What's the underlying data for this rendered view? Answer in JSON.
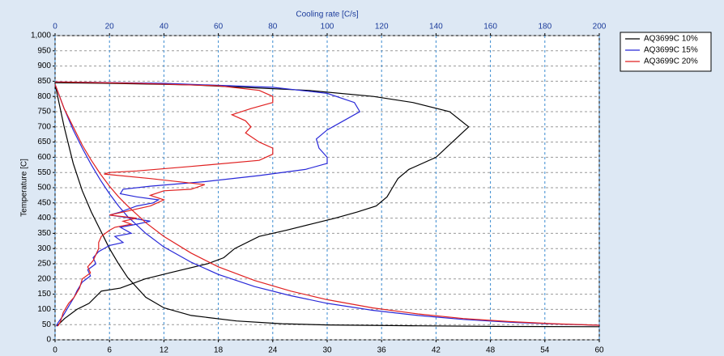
{
  "chart_data": {
    "type": "line",
    "x2_label": "Cooling rate [C/s]",
    "y_label": "Temperature [C]",
    "xlim": [
      0,
      60
    ],
    "xticks": [
      0,
      6,
      12,
      18,
      24,
      30,
      36,
      42,
      48,
      54,
      60
    ],
    "x2lim": [
      0,
      200
    ],
    "x2ticks": [
      0,
      20,
      40,
      60,
      80,
      100,
      120,
      140,
      160,
      180,
      200
    ],
    "ylim": [
      0,
      1000
    ],
    "yticks": [
      0,
      50,
      100,
      150,
      200,
      250,
      300,
      350,
      400,
      450,
      500,
      550,
      600,
      650,
      700,
      750,
      800,
      850,
      900,
      950,
      {
        "value": 1000,
        "label": "1,000"
      }
    ],
    "grid": true,
    "legend": "outside-right",
    "series": [
      {
        "name": "AQ3699C 10%",
        "color": "#000000",
        "cooling": {
          "x": [
            0,
            1,
            2,
            3,
            4,
            5,
            6,
            7,
            8,
            10,
            12,
            15,
            20,
            25,
            30,
            40,
            50,
            60
          ],
          "values": [
            840,
            700,
            580,
            490,
            420,
            360,
            300,
            250,
            205,
            140,
            105,
            80,
            62,
            53,
            49,
            46,
            44,
            43
          ]
        },
        "rate": {
          "x": [
            0,
            20,
            50,
            69,
            93,
            117,
            131.5,
            145,
            152,
            146,
            140,
            130,
            126,
            124,
            122,
            118,
            111,
            103,
            94,
            85,
            75,
            66,
            62,
            56,
            42,
            33,
            24,
            17,
            12.5,
            8,
            3.5,
            1.2,
            0.6
          ],
          "values": [
            845,
            843,
            838,
            830,
            820,
            800,
            780,
            750,
            700,
            650,
            600,
            560,
            530,
            500,
            470,
            440,
            420,
            400,
            380,
            360,
            340,
            300,
            270,
            250,
            220,
            200,
            170,
            160,
            120,
            100,
            70,
            50,
            45
          ]
        }
      },
      {
        "name": "AQ3699C 15%",
        "color": "#2828d8",
        "cooling": {
          "x": [
            0,
            1,
            2,
            3,
            4,
            5,
            6,
            7,
            8,
            10,
            12,
            15,
            18,
            22,
            26,
            30,
            35,
            40,
            45,
            50,
            55,
            60
          ],
          "values": [
            840,
            760,
            690,
            630,
            575,
            525,
            480,
            440,
            405,
            350,
            305,
            255,
            215,
            175,
            145,
            120,
            97,
            80,
            67,
            58,
            52,
            48
          ]
        },
        "rate": {
          "x": [
            0,
            40,
            80,
            100,
            110,
            112,
            106,
            100,
            96,
            97,
            100,
            100,
            92,
            75,
            55,
            35,
            25,
            24,
            30,
            38,
            36,
            30,
            24,
            20,
            28,
            35,
            30,
            24,
            28,
            22,
            25,
            20,
            16,
            14,
            15,
            12,
            13,
            10,
            8,
            7,
            5,
            3,
            1,
            0.5
          ],
          "values": [
            848,
            843,
            830,
            810,
            780,
            750,
            720,
            690,
            660,
            630,
            600,
            580,
            560,
            540,
            520,
            505,
            495,
            480,
            470,
            460,
            450,
            440,
            420,
            410,
            400,
            390,
            380,
            370,
            350,
            340,
            320,
            310,
            290,
            270,
            250,
            230,
            210,
            190,
            160,
            140,
            110,
            80,
            55,
            45
          ]
        }
      },
      {
        "name": "AQ3699C 20%",
        "color": "#e02020",
        "cooling": {
          "x": [
            0,
            1,
            2,
            3,
            4,
            5,
            6,
            7,
            8,
            10,
            12,
            15,
            18,
            22,
            26,
            30,
            35,
            40,
            45,
            50,
            55,
            60
          ],
          "values": [
            840,
            760,
            700,
            640,
            590,
            545,
            505,
            470,
            440,
            385,
            340,
            285,
            240,
            195,
            160,
            132,
            105,
            85,
            70,
            60,
            53,
            48
          ]
        },
        "rate": {
          "x": [
            0,
            30,
            60,
            75,
            80,
            80,
            72,
            65,
            70,
            72,
            70,
            75,
            80,
            80,
            75,
            50,
            30,
            20,
            18,
            35,
            55,
            50,
            40,
            35,
            40,
            35,
            30,
            25,
            20,
            30,
            25,
            28,
            22,
            20,
            17,
            16,
            16,
            15,
            14,
            12,
            13,
            10,
            9,
            7,
            5,
            3,
            2,
            1
          ],
          "values": [
            848,
            843,
            835,
            820,
            800,
            780,
            760,
            740,
            720,
            700,
            680,
            650,
            630,
            610,
            590,
            570,
            555,
            550,
            545,
            530,
            510,
            495,
            490,
            475,
            460,
            440,
            430,
            420,
            410,
            400,
            390,
            380,
            370,
            360,
            340,
            320,
            300,
            280,
            260,
            240,
            220,
            200,
            170,
            140,
            120,
            90,
            60,
            45
          ]
        }
      }
    ]
  }
}
